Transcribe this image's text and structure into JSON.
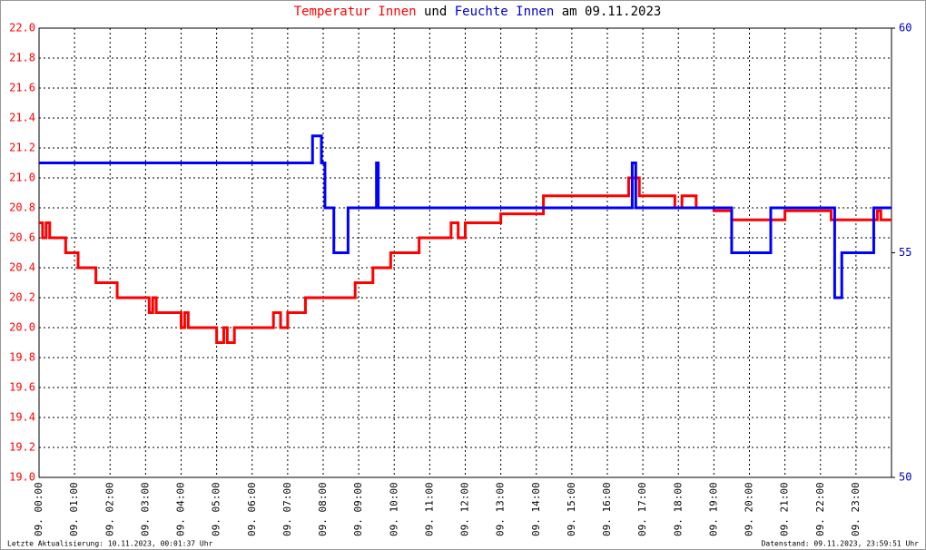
{
  "chart_data": {
    "type": "line",
    "title_parts": [
      "Temperatur Innen",
      "und",
      "Feuchte Innen",
      "am 09.11.2023"
    ],
    "footer_left": "Letzte Aktualisierung: 10.11.2023, 00:01:37 Uhr",
    "footer_right": "Datenstand: 09.11.2023, 23:59:51 Uhr",
    "xlim": [
      0,
      24
    ],
    "xticks": [
      {
        "value": 0,
        "label": "09. 00:00"
      },
      {
        "value": 1,
        "label": "09. 01:00"
      },
      {
        "value": 2,
        "label": "09. 02:00"
      },
      {
        "value": 3,
        "label": "09. 03:00"
      },
      {
        "value": 4,
        "label": "09. 04:00"
      },
      {
        "value": 5,
        "label": "09. 05:00"
      },
      {
        "value": 6,
        "label": "09. 06:00"
      },
      {
        "value": 7,
        "label": "09. 07:00"
      },
      {
        "value": 8,
        "label": "09. 08:00"
      },
      {
        "value": 9,
        "label": "09. 09:00"
      },
      {
        "value": 10,
        "label": "09. 10:00"
      },
      {
        "value": 11,
        "label": "09. 11:00"
      },
      {
        "value": 12,
        "label": "09. 12:00"
      },
      {
        "value": 13,
        "label": "09. 13:00"
      },
      {
        "value": 14,
        "label": "09. 14:00"
      },
      {
        "value": 15,
        "label": "09. 15:00"
      },
      {
        "value": 16,
        "label": "09. 16:00"
      },
      {
        "value": 17,
        "label": "09. 17:00"
      },
      {
        "value": 18,
        "label": "09. 18:00"
      },
      {
        "value": 19,
        "label": "09. 19:00"
      },
      {
        "value": 20,
        "label": "09. 20:00"
      },
      {
        "value": 21,
        "label": "09. 21:00"
      },
      {
        "value": 22,
        "label": "09. 22:00"
      },
      {
        "value": 23,
        "label": "09. 23:00"
      }
    ],
    "ylim": [
      19,
      22
    ],
    "yticks": [
      {
        "value": 19,
        "label": "19.0"
      },
      19.2,
      19.4,
      19.6,
      19.8,
      {
        "value": 20,
        "label": "20.0"
      },
      20.2,
      20.4,
      20.6,
      20.8,
      {
        "value": 21,
        "label": "21.0"
      },
      21.2,
      21.4,
      21.6,
      21.8,
      {
        "value": 22,
        "label": "22.0"
      }
    ],
    "y2lim": [
      50,
      60
    ],
    "y2ticks": [
      50,
      55,
      60
    ],
    "grid": true,
    "series": [
      {
        "name": "Temperatur Innen",
        "color": "#ff0000",
        "x": [
          0,
          0.1,
          0.1,
          0.2,
          0.2,
          0.3,
          0.3,
          0.75,
          0.75,
          1.1,
          1.1,
          1.6,
          1.6,
          2.2,
          2.2,
          3.1,
          3.1,
          3.2,
          3.2,
          3.3,
          3.3,
          4.0,
          4.0,
          4.1,
          4.1,
          4.2,
          4.2,
          5.0,
          5.0,
          5.2,
          5.2,
          5.3,
          5.3,
          5.5,
          5.5,
          6.6,
          6.6,
          6.8,
          6.8,
          7.0,
          7.0,
          7.5,
          7.5,
          8.9,
          8.9,
          9.4,
          9.4,
          9.9,
          9.9,
          10.7,
          10.7,
          11.6,
          11.6,
          11.8,
          11.8,
          12.0,
          12.0,
          13.0,
          13.0,
          14.2,
          14.2,
          16.6,
          16.6,
          16.9,
          16.9,
          17.9,
          17.9,
          18.1,
          18.1,
          18.5,
          18.5,
          19.0,
          19.0,
          19.5,
          19.5,
          21.0,
          21.0,
          22.3,
          22.3,
          23.6,
          23.6,
          23.7,
          23.7,
          24
        ],
        "values": [
          20.7,
          20.7,
          20.6,
          20.6,
          20.7,
          20.7,
          20.6,
          20.6,
          20.5,
          20.5,
          20.4,
          20.4,
          20.3,
          20.3,
          20.2,
          20.2,
          20.1,
          20.1,
          20.2,
          20.2,
          20.1,
          20.1,
          20.0,
          20.0,
          20.1,
          20.1,
          20.0,
          20.0,
          19.9,
          19.9,
          20.0,
          20.0,
          19.9,
          19.9,
          20.0,
          20.0,
          20.1,
          20.1,
          20.0,
          20.0,
          20.1,
          20.1,
          20.2,
          20.2,
          20.3,
          20.3,
          20.4,
          20.4,
          20.5,
          20.5,
          20.6,
          20.6,
          20.7,
          20.7,
          20.6,
          20.6,
          20.7,
          20.7,
          20.76,
          20.76,
          20.88,
          20.88,
          21.0,
          21.0,
          20.88,
          20.88,
          20.8,
          20.8,
          20.88,
          20.88,
          20.8,
          20.8,
          20.78,
          20.78,
          20.72,
          20.72,
          20.78,
          20.78,
          20.72,
          20.72,
          20.78,
          20.78,
          20.72,
          20.72
        ]
      },
      {
        "name": "Feuchte Innen",
        "color": "#0000ff",
        "axis": "y2",
        "x": [
          0,
          7.7,
          7.7,
          7.95,
          7.95,
          8.05,
          8.05,
          8.3,
          8.3,
          8.7,
          8.7,
          9.5,
          9.5,
          9.55,
          9.55,
          16.7,
          16.7,
          16.8,
          16.8,
          19.5,
          19.5,
          20.6,
          20.6,
          22.4,
          22.4,
          22.6,
          22.6,
          23.5,
          23.5,
          24
        ],
        "values": [
          57,
          57,
          57.6,
          57.6,
          57,
          57,
          56,
          56,
          55,
          55,
          56,
          56,
          57,
          57,
          56,
          56,
          57,
          57,
          56,
          56,
          55,
          55,
          56,
          56,
          54,
          54,
          55,
          55,
          56,
          56
        ]
      }
    ]
  }
}
